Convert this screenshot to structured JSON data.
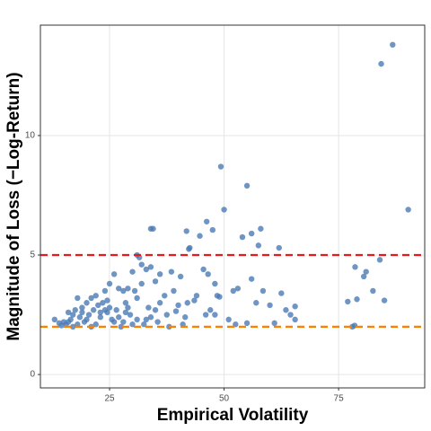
{
  "chart_data": {
    "type": "scatter",
    "x_label": "Empirical Volatility",
    "y_label": "Magnitude of Loss (−Log-Return)",
    "xlim": [
      9.9,
      93.8
    ],
    "ylim": [
      -0.56,
      14.62
    ],
    "xticks": [
      25,
      50,
      75
    ],
    "yticks": [
      0,
      5,
      10
    ],
    "grid": true,
    "color": "#4a7ab5",
    "hlines": [
      {
        "value": 5,
        "color": "#e41a1c"
      },
      {
        "value": 2,
        "color": "#ff7f00"
      }
    ],
    "x": [
      86.8,
      84.3,
      90.2,
      49.3,
      55.0,
      34.0,
      34.5,
      47.5,
      50,
      41.8,
      46.2,
      58,
      56,
      54,
      44.7,
      42.3,
      42.5,
      62,
      57.5,
      31,
      31.5,
      84,
      78.6,
      81,
      82.5,
      80.5,
      85,
      77,
      79,
      78.5,
      78,
      36,
      38.5,
      40.5,
      45.5,
      46.5,
      48,
      48.5,
      49,
      52,
      53,
      56,
      58.5,
      62.5,
      57,
      60,
      63.5,
      65.5,
      64.5,
      65.5,
      61,
      55,
      52.5,
      51,
      47,
      46,
      48,
      44,
      43.5,
      42,
      40,
      39,
      37,
      36,
      35,
      33.5,
      34,
      35.5,
      37.5,
      38,
      39.5,
      41.5,
      41,
      30,
      32,
      33,
      34,
      35,
      30.5,
      31,
      32,
      29,
      28,
      27,
      26,
      25,
      24,
      23.5,
      22.5,
      22,
      21,
      20,
      19,
      18,
      17.5,
      17,
      16.5,
      16,
      15.5,
      15,
      14.5,
      14,
      13,
      18.5,
      19.5,
      20.5,
      21.5,
      22,
      23,
      24,
      24.5,
      25.5,
      26,
      27,
      27.5,
      28,
      28.5,
      29.5,
      30,
      31,
      32.5,
      33,
      26.5,
      25,
      21,
      20,
      19,
      17,
      16,
      18,
      23,
      24.5,
      29,
      28.5
    ],
    "values": [
      13.8,
      13.0,
      6.9,
      8.7,
      7.9,
      6.1,
      6.1,
      6.05,
      6.9,
      6.0,
      6.4,
      6.1,
      5.9,
      5.75,
      5.8,
      5.25,
      5.3,
      5.3,
      5.4,
      5.0,
      4.9,
      4.8,
      4.5,
      4.3,
      3.5,
      4.1,
      3.1,
      3.05,
      3.15,
      2.05,
      2.0,
      4.2,
      4.3,
      4.1,
      4.4,
      4.2,
      3.8,
      3.3,
      3.25,
      3.5,
      3.6,
      4.0,
      3.5,
      3.4,
      3.0,
      2.9,
      2.7,
      2.85,
      2.5,
      2.3,
      2.15,
      2.15,
      2.1,
      2.3,
      2.7,
      2.5,
      2.5,
      3.3,
      3.1,
      3.0,
      2.9,
      3.5,
      3.3,
      3.0,
      2.7,
      2.8,
      2.4,
      2.2,
      2.5,
      2.0,
      2.65,
      2.4,
      2.1,
      4.3,
      4.6,
      4.4,
      4.5,
      3.9,
      3.5,
      3.2,
      3.8,
      3.6,
      3.5,
      3.6,
      4.2,
      3.8,
      3.5,
      3.0,
      2.9,
      3.3,
      3.2,
      3.0,
      2.8,
      3.2,
      2.7,
      2.5,
      2.3,
      2.2,
      2.1,
      2.2,
      2.05,
      2.15,
      2.3,
      2.4,
      2.2,
      2.5,
      2.7,
      2.1,
      2.4,
      2.7,
      2.6,
      2.3,
      2.2,
      2.4,
      2.0,
      2.2,
      2.6,
      2.5,
      2.1,
      2.3,
      2.1,
      2.3,
      2.7,
      2.8,
      2.0,
      2.3,
      2.6,
      2.0,
      2.6,
      2.1,
      2.6,
      3.1,
      2.8,
      3.0
    ]
  }
}
